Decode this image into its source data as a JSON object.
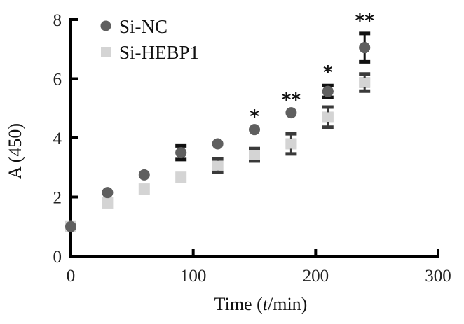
{
  "chart_data": {
    "type": "scatter",
    "title": "",
    "xlabel": "Time (t/min)",
    "xlabel_parts": {
      "before": "Time (",
      "italic": "t",
      "after": "/min)"
    },
    "ylabel": "A (450)",
    "xlim": [
      0,
      300
    ],
    "ylim": [
      0,
      8
    ],
    "xticks": [
      0,
      100,
      200,
      300
    ],
    "yticks": [
      0,
      2,
      4,
      6,
      8
    ],
    "xtick_labels": [
      "0",
      "100",
      "200",
      "300"
    ],
    "ytick_labels": [
      "0",
      "2",
      "4",
      "6",
      "8"
    ],
    "grid": false,
    "legend_position": "top-left",
    "series": [
      {
        "name": "Si-NC",
        "marker": "circle",
        "color": "#5f5f5f",
        "error_color": "#111111",
        "x": [
          0,
          30,
          60,
          90,
          120,
          150,
          180,
          210,
          240
        ],
        "y": [
          1.0,
          2.15,
          2.75,
          3.5,
          3.8,
          4.28,
          4.85,
          5.57,
          7.05
        ],
        "error": [
          0,
          0,
          0,
          0.23,
          0,
          0,
          0,
          0.2,
          0.48
        ]
      },
      {
        "name": "Si-HEBP1",
        "marker": "square",
        "color": "#d4d4d4",
        "error_color": "#3a3a3a",
        "x": [
          0,
          30,
          60,
          90,
          120,
          150,
          180,
          210,
          240
        ],
        "y": [
          1.0,
          1.8,
          2.27,
          2.67,
          3.06,
          3.43,
          3.8,
          4.7,
          5.87
        ],
        "error": [
          0,
          0,
          0,
          0,
          0.23,
          0.21,
          0.34,
          0.34,
          0.29
        ]
      }
    ],
    "annotations": [
      {
        "x": 150,
        "text": "*"
      },
      {
        "x": 180,
        "text": "**"
      },
      {
        "x": 210,
        "text": "*"
      },
      {
        "x": 240,
        "text": "**"
      }
    ]
  }
}
